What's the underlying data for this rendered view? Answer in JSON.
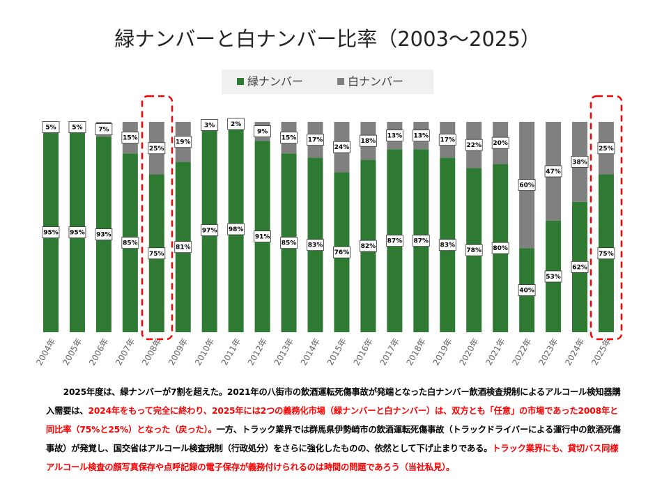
{
  "chart_data": {
    "type": "stacked_bar_100",
    "title": "緑ナンバーと白ナンバー比率（2003〜2025）",
    "categories": [
      "2004年",
      "2005年",
      "2006年",
      "2007年",
      "2008年",
      "2009年",
      "2010年",
      "2011年",
      "2012年",
      "2013年",
      "2014年",
      "2015年",
      "2016年",
      "2017年",
      "2018年",
      "2019年",
      "2020年",
      "2021年",
      "2022年",
      "2023年",
      "2024年",
      "2025年"
    ],
    "ylim": [
      0,
      100
    ],
    "series": [
      {
        "name": "緑ナンバー",
        "color": "#2e7a32",
        "values": [
          95,
          95,
          93,
          85,
          75,
          81,
          97,
          98,
          91,
          85,
          83,
          76,
          82,
          87,
          87,
          83,
          78,
          80,
          40,
          53,
          62,
          75
        ],
        "value_labels": [
          "95%",
          "95%",
          "93%",
          "85%",
          "75%",
          "81%",
          "97%",
          "98%",
          "91%",
          "85%",
          "83%",
          "76%",
          "82%",
          "87%",
          "87%",
          "83%",
          "78%",
          "80%",
          "40%",
          "53%",
          "62%",
          "75%"
        ]
      },
      {
        "name": "白ナンバー",
        "color": "#808080",
        "values": [
          5,
          5,
          7,
          15,
          25,
          19,
          3,
          2,
          9,
          15,
          17,
          24,
          18,
          13,
          13,
          17,
          22,
          20,
          60,
          47,
          38,
          25
        ],
        "value_labels": [
          "5%",
          "5%",
          "7%",
          "15%",
          "25%",
          "19%",
          "3%",
          "2%",
          "9%",
          "15%",
          "17%",
          "24%",
          "18%",
          "13%",
          "13%",
          "17%",
          "22%",
          "20%",
          "60%",
          "47%",
          "38%",
          "25%"
        ]
      }
    ]
  },
  "note": [
    {
      "text": "2025年度は、緑ナンバーが7割を超えた。2021年の八街市の飲酒運転死傷事故が発端となった白ナンバー飲酒検査規制によるアルコール検知器購入需要は、",
      "color": "#000000"
    },
    {
      "text": "2024年をもって完全に終わり、2025年には2つの義務化市場（緑ナンバーと白ナンバー）は、双方とも「任意」の市場であった2008年と同比率（75%と25%）となった（戻った）。",
      "color": "#ff0000"
    },
    {
      "text": "一方、トラック業界では群馬県伊勢崎市の飲酒運転死傷事故（トラックドライバーによる運行中の飲酒死傷事故）が発覚し、国交省はアルコール検査規制（行政処分）をさらに強化したものの、依然として下げ止まりである。",
      "color": "#000000"
    },
    {
      "text": "トラック業界にも、貸切バス同様アルコール検査の顔写真保存や点呼記録の電子保存が義務付けられるのは時間の問題であろう（当社私見）。",
      "color": "#ff0000"
    }
  ]
}
